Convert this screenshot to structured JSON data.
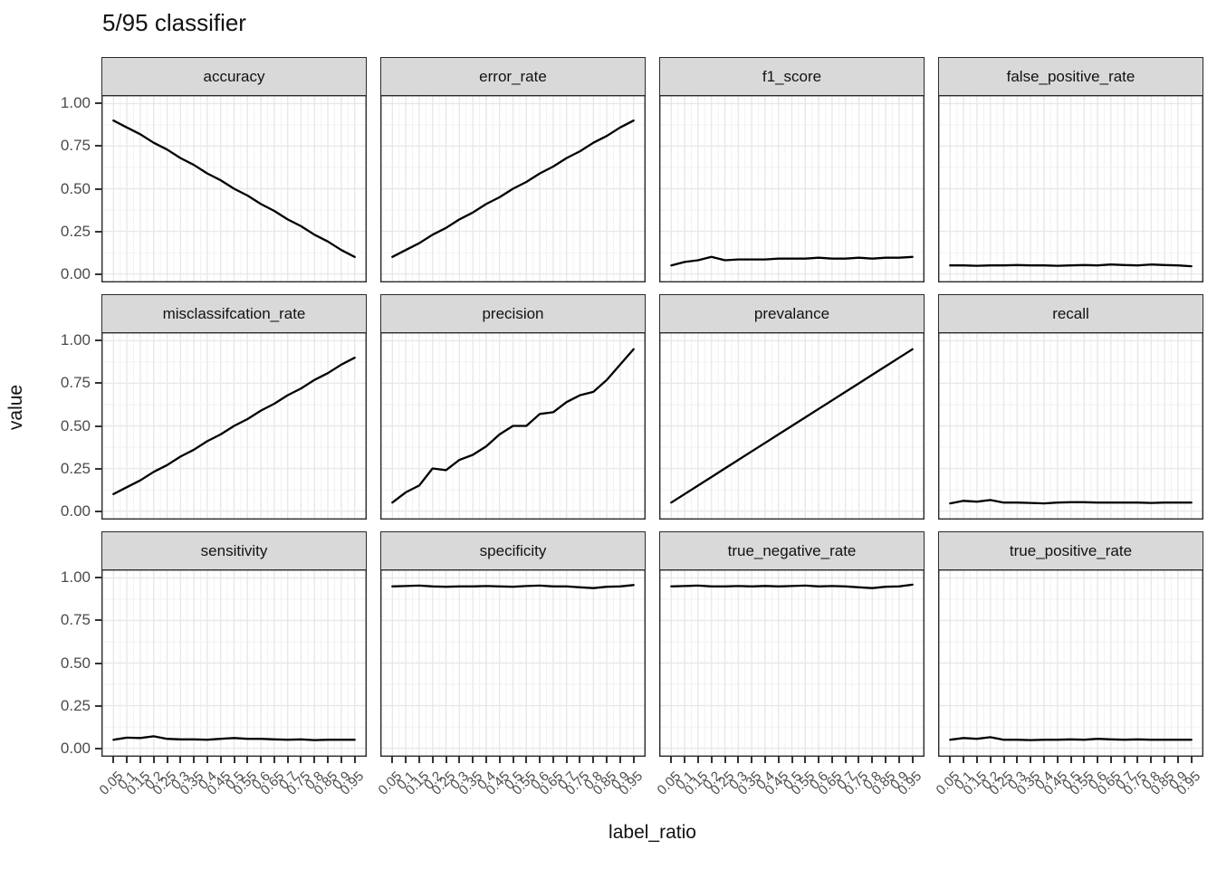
{
  "title": "5/95 classifier",
  "chart_data": {
    "type": "line",
    "title": "5/95 classifier",
    "xlabel": "label_ratio",
    "ylabel": "value",
    "ylim": [
      0,
      1
    ],
    "x_expanded_range": [
      0.005,
      0.995
    ],
    "y_expanded_range": [
      -0.05,
      1.05
    ],
    "grid": "on",
    "legend": "none",
    "layout": "facet-grid 3 rows x 4 cols",
    "y_ticks": [
      1.0,
      0.75,
      0.5,
      0.25,
      0.0
    ],
    "y_tick_labels": [
      "1.00",
      "0.75",
      "0.50",
      "0.25",
      "0.00"
    ],
    "x": [
      0.05,
      0.1,
      0.15,
      0.2,
      0.25,
      0.3,
      0.35,
      0.4,
      0.45,
      0.5,
      0.55,
      0.6,
      0.65,
      0.7,
      0.75,
      0.8,
      0.85,
      0.9,
      0.95
    ],
    "x_tick_labels": [
      "0.05",
      "0.1",
      "0.15",
      "0.2",
      "0.25",
      "0.3",
      "0.35",
      "0.4",
      "0.45",
      "0.5",
      "0.55",
      "0.6",
      "0.65",
      "0.7",
      "0.75",
      "0.8",
      "0.85",
      "0.9",
      "0.95"
    ],
    "line_color": "#000000",
    "strip_fill": "#d9d9d9",
    "panel_border_color": "#2a2a2a",
    "grid_major_color": "#e8e8e8",
    "grid_minor_color": "#f2f2f2",
    "axis_text_color": "#4b4b4b",
    "facets": [
      {
        "title": "accuracy",
        "values": [
          0.9,
          0.86,
          0.82,
          0.77,
          0.73,
          0.68,
          0.64,
          0.59,
          0.55,
          0.5,
          0.46,
          0.41,
          0.37,
          0.32,
          0.28,
          0.23,
          0.19,
          0.14,
          0.1
        ]
      },
      {
        "title": "error_rate",
        "values": [
          0.1,
          0.14,
          0.18,
          0.23,
          0.27,
          0.32,
          0.36,
          0.41,
          0.45,
          0.5,
          0.54,
          0.59,
          0.63,
          0.68,
          0.72,
          0.77,
          0.81,
          0.86,
          0.9
        ]
      },
      {
        "title": "f1_score",
        "values": [
          0.05,
          0.07,
          0.08,
          0.1,
          0.08,
          0.085,
          0.085,
          0.085,
          0.09,
          0.09,
          0.09,
          0.095,
          0.09,
          0.09,
          0.095,
          0.09,
          0.095,
          0.095,
          0.1
        ]
      },
      {
        "title": "false_positive_rate",
        "values": [
          0.05,
          0.05,
          0.048,
          0.05,
          0.05,
          0.052,
          0.05,
          0.05,
          0.048,
          0.05,
          0.052,
          0.05,
          0.055,
          0.052,
          0.05,
          0.055,
          0.052,
          0.05,
          0.045
        ]
      },
      {
        "title": "misclassifcation_rate",
        "values": [
          0.1,
          0.14,
          0.18,
          0.23,
          0.27,
          0.32,
          0.36,
          0.41,
          0.45,
          0.5,
          0.54,
          0.59,
          0.63,
          0.68,
          0.72,
          0.77,
          0.81,
          0.86,
          0.9
        ]
      },
      {
        "title": "precision",
        "values": [
          0.05,
          0.11,
          0.15,
          0.25,
          0.24,
          0.3,
          0.33,
          0.38,
          0.45,
          0.5,
          0.5,
          0.57,
          0.58,
          0.64,
          0.68,
          0.7,
          0.77,
          0.86,
          0.95
        ]
      },
      {
        "title": "prevalance",
        "values": [
          0.05,
          0.1,
          0.15,
          0.2,
          0.25,
          0.3,
          0.35,
          0.4,
          0.45,
          0.5,
          0.55,
          0.6,
          0.65,
          0.7,
          0.75,
          0.8,
          0.85,
          0.9,
          0.95
        ]
      },
      {
        "title": "recall",
        "values": [
          0.045,
          0.06,
          0.055,
          0.065,
          0.05,
          0.05,
          0.048,
          0.045,
          0.05,
          0.052,
          0.052,
          0.05,
          0.05,
          0.05,
          0.05,
          0.048,
          0.05,
          0.05,
          0.05
        ]
      },
      {
        "title": "sensitivity",
        "values": [
          0.05,
          0.062,
          0.06,
          0.07,
          0.055,
          0.052,
          0.052,
          0.05,
          0.055,
          0.06,
          0.055,
          0.055,
          0.052,
          0.05,
          0.052,
          0.048,
          0.05,
          0.05,
          0.05
        ]
      },
      {
        "title": "specificity",
        "values": [
          0.95,
          0.952,
          0.955,
          0.95,
          0.948,
          0.95,
          0.95,
          0.952,
          0.95,
          0.948,
          0.952,
          0.955,
          0.95,
          0.95,
          0.945,
          0.94,
          0.948,
          0.95,
          0.958
        ]
      },
      {
        "title": "true_negative_rate",
        "values": [
          0.95,
          0.952,
          0.955,
          0.95,
          0.95,
          0.952,
          0.95,
          0.953,
          0.95,
          0.952,
          0.955,
          0.95,
          0.952,
          0.95,
          0.945,
          0.94,
          0.948,
          0.95,
          0.96
        ]
      },
      {
        "title": "true_positive_rate",
        "values": [
          0.05,
          0.06,
          0.055,
          0.065,
          0.05,
          0.05,
          0.048,
          0.05,
          0.05,
          0.052,
          0.05,
          0.055,
          0.052,
          0.05,
          0.052,
          0.05,
          0.05,
          0.05,
          0.05
        ]
      }
    ]
  }
}
